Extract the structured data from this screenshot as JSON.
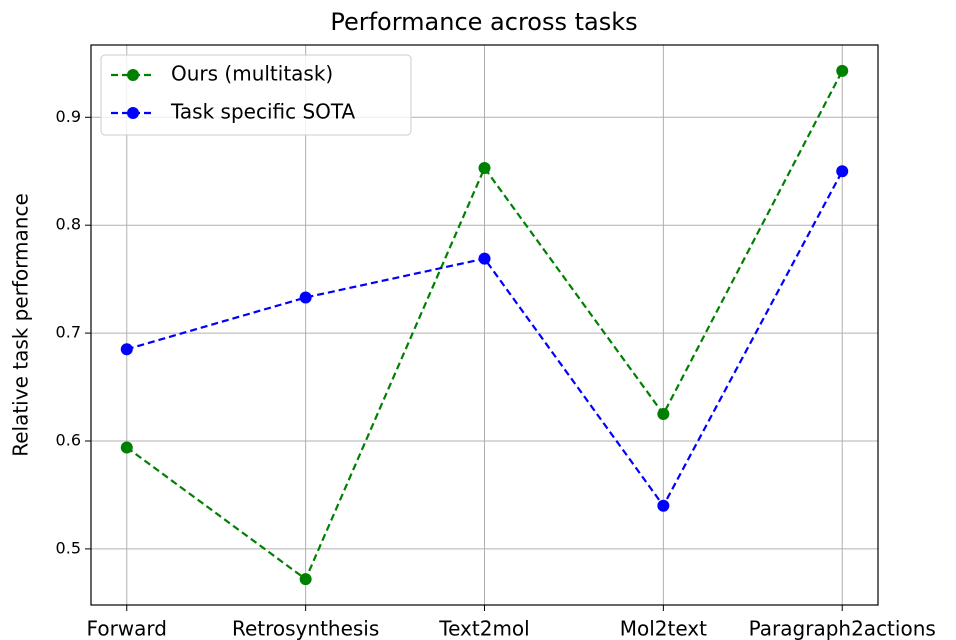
{
  "chart_data": {
    "type": "line",
    "title": "Performance across tasks",
    "y_label": "Relative task performance",
    "categories": [
      "Forward",
      "Retrosynthesis",
      "Text2mol",
      "Mol2text",
      "Paragraph2actions"
    ],
    "series": [
      {
        "name": "Ours (multitask)",
        "color": "#008000",
        "values": [
          0.594,
          0.472,
          0.853,
          0.625,
          0.943
        ]
      },
      {
        "name": "Task specific SOTA",
        "color": "#0000ff",
        "values": [
          0.685,
          0.733,
          0.769,
          0.54,
          0.85
        ]
      }
    ],
    "ylim": [
      0.448,
      0.967
    ],
    "yticks": [
      0.5,
      0.6,
      0.7,
      0.8,
      0.9
    ],
    "grid": true,
    "legend": "upper left",
    "line_style": "dashed"
  }
}
